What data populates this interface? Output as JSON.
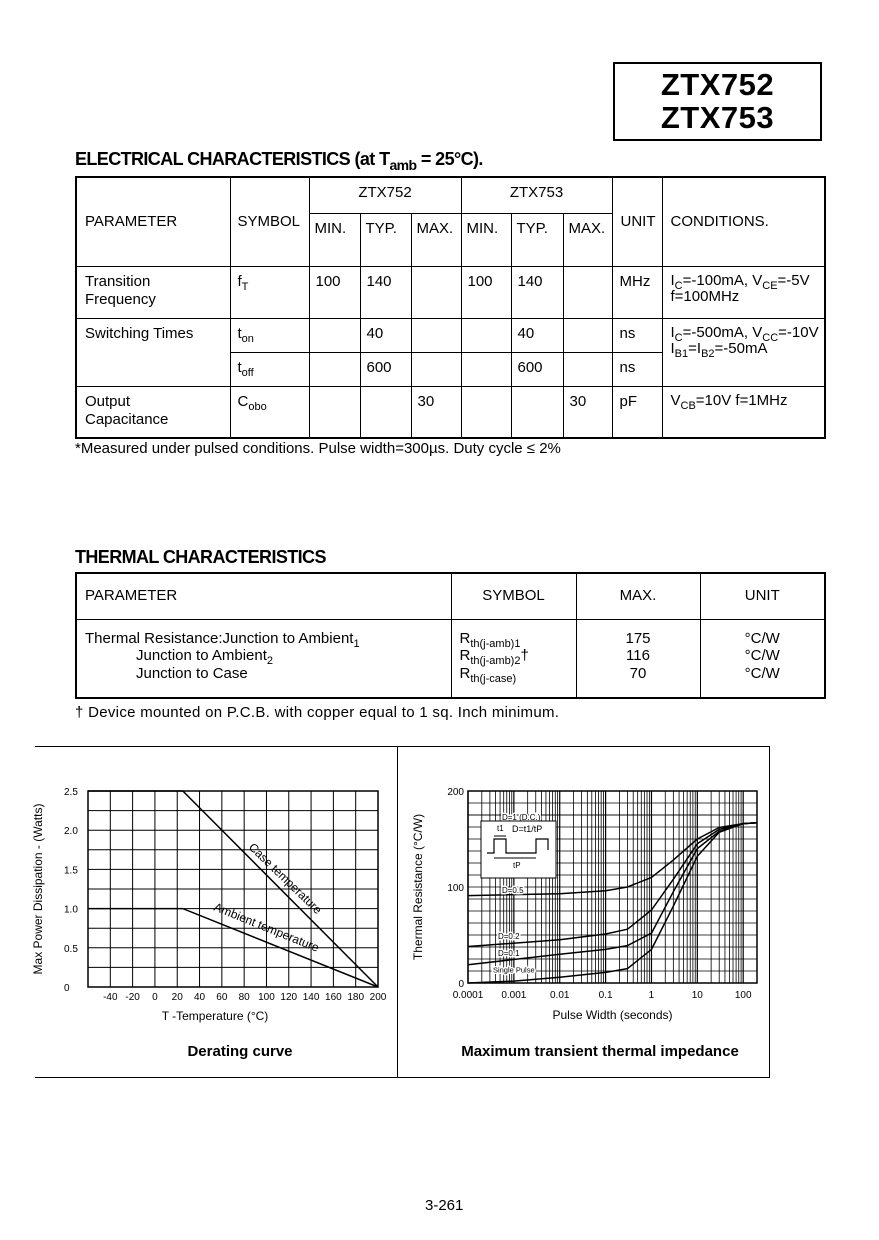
{
  "part_numbers": [
    "ZTX752",
    "ZTX753"
  ],
  "electrical": {
    "heading_main": "ELECTRICAL CHARACTERISTICS (at T",
    "heading_sub": "amb",
    "heading_end": " = 25°C).",
    "headers": {
      "parameter": "PARAMETER",
      "symbol": "SYMBOL",
      "group1": "ZTX752",
      "group2": "ZTX753",
      "min": "MIN.",
      "typ": "TYP.",
      "max": "MAX.",
      "unit": "UNIT",
      "conditions": "CONDITIONS."
    },
    "rows": [
      {
        "parameter": "Transition Frequency",
        "symbol": [
          {
            "t": "f"
          },
          {
            "s": "T"
          }
        ],
        "v752": [
          "100",
          "140",
          ""
        ],
        "v753": [
          "100",
          "140",
          ""
        ],
        "unit": "MHz",
        "conditions": [
          {
            "t": "I"
          },
          {
            "s": "C"
          },
          {
            "t": "=-100mA, V"
          },
          {
            "s": "CE"
          },
          {
            "t": "=-5V"
          },
          {
            "br": true
          },
          {
            "t": "f=100MHz"
          }
        ]
      },
      {
        "parameter": "Switching Times",
        "symbol": [
          {
            "t": "t"
          },
          {
            "s": "on"
          }
        ],
        "v752": [
          "",
          "40",
          ""
        ],
        "v753": [
          "",
          "40",
          ""
        ],
        "unit": "ns",
        "conditions": [
          {
            "t": "I"
          },
          {
            "s": "C"
          },
          {
            "t": "=-500mA, V"
          },
          {
            "s": "CC"
          },
          {
            "t": "=-10V"
          },
          {
            "br": true
          },
          {
            "t": "I"
          },
          {
            "s": "B1"
          },
          {
            "t": "=I"
          },
          {
            "s": "B2"
          },
          {
            "t": "=-50mA"
          }
        ]
      },
      {
        "parameter": "",
        "symbol": [
          {
            "t": "t"
          },
          {
            "s": "off"
          }
        ],
        "v752": [
          "",
          "600",
          ""
        ],
        "v753": [
          "",
          "600",
          ""
        ],
        "unit": "ns",
        "conditions": []
      },
      {
        "parameter": "Output Capacitance",
        "symbol": [
          {
            "t": "C"
          },
          {
            "s": "obo"
          }
        ],
        "v752": [
          "",
          "",
          "30"
        ],
        "v753": [
          "",
          "",
          "30"
        ],
        "unit": "pF",
        "conditions": [
          {
            "t": "V"
          },
          {
            "s": "CB"
          },
          {
            "t": "=10V f=1MHz"
          }
        ]
      }
    ],
    "footnote": "*Measured under pulsed conditions. Pulse width=300µs. Duty cycle ≤ 2%"
  },
  "thermal": {
    "heading": "THERMAL CHARACTERISTICS",
    "headers": {
      "parameter": "PARAMETER",
      "symbol": "SYMBOL",
      "max": "MAX.",
      "unit": "UNIT"
    },
    "rows": [
      {
        "parameter": [
          {
            "t": "Thermal Resistance:Junction to Ambient"
          },
          {
            "s": "1"
          }
        ],
        "symbol": [
          {
            "t": "R"
          },
          {
            "s": "th(j-amb)1"
          }
        ],
        "max": "175",
        "unit": "°C/W"
      },
      {
        "parameter": [
          {
            "t": "Junction to Ambient"
          },
          {
            "s": "2"
          }
        ],
        "symbol": [
          {
            "t": "R"
          },
          {
            "s": "th(j-amb)2"
          },
          {
            "t": "†"
          }
        ],
        "max": "116",
        "unit": "°C/W"
      },
      {
        "parameter": [
          {
            "t": "Junction to Case"
          }
        ],
        "symbol": [
          {
            "t": "R"
          },
          {
            "s": "th(j-case)"
          }
        ],
        "max": "70",
        "unit": "°C/W"
      }
    ],
    "footnote": "† Device mounted on P.C.B. with copper equal to 1 sq. Inch minimum."
  },
  "chart_data": [
    {
      "type": "line",
      "title": "Derating curve",
      "xlabel": "T -Temperature (°C)",
      "ylabel": "Max Power Dissipation - (Watts)",
      "xlim": [
        -60,
        200
      ],
      "ylim": [
        0,
        2.5
      ],
      "xticks": [
        -40,
        -20,
        0,
        20,
        40,
        60,
        80,
        100,
        120,
        140,
        160,
        180,
        200
      ],
      "yticks": [
        "0",
        "0.5",
        "1.0",
        "1.5",
        "2.0",
        "2.5"
      ],
      "grid": true,
      "series": [
        {
          "name": "Case temperature",
          "x": [
            -60,
            25,
            200
          ],
          "y": [
            2.5,
            2.5,
            0
          ]
        },
        {
          "name": "Ambient temperature",
          "x": [
            -60,
            25,
            200
          ],
          "y": [
            1.0,
            1.0,
            0
          ]
        }
      ]
    },
    {
      "type": "line",
      "title": "Maximum transient thermal impedance",
      "xlabel": "Pulse Width (seconds)",
      "ylabel": "Thermal Resistance (°C/W)",
      "xscale": "log",
      "xlim": [
        0.0001,
        200
      ],
      "ylim": [
        0,
        200
      ],
      "xticks": [
        "0.0001",
        "0.001",
        "0.01",
        "0.1",
        "1",
        "10",
        "100"
      ],
      "yticks": [
        "0",
        "100",
        "200"
      ],
      "grid": true,
      "inset": {
        "t1": "t1",
        "tp": "tP",
        "formula": "D=t1/tP"
      },
      "series": [
        {
          "name": "D=1 (D.C.)",
          "x": [],
          "y": []
        },
        {
          "name": "D=0.5",
          "x": [
            0.0001,
            0.01,
            0.1,
            0.3,
            1,
            3,
            10,
            30,
            100,
            200
          ],
          "y": [
            91,
            93,
            96,
            100,
            110,
            128,
            150,
            162,
            166,
            167
          ]
        },
        {
          "name": "D=0.2",
          "x": [
            0.0001,
            0.01,
            0.1,
            0.3,
            1,
            3,
            10,
            30,
            100,
            200
          ],
          "y": [
            38,
            45,
            51,
            56,
            76,
            108,
            145,
            160,
            166,
            167
          ]
        },
        {
          "name": "D=0.1",
          "x": [
            0.0001,
            0.01,
            0.1,
            0.3,
            1,
            3,
            10,
            30,
            100,
            200
          ],
          "y": [
            19,
            30,
            35,
            39,
            52,
            95,
            140,
            158,
            166,
            167
          ]
        },
        {
          "name": "Single Pulse",
          "x": [
            0.0001,
            0.001,
            0.01,
            0.1,
            0.3,
            1,
            3,
            10,
            30,
            100,
            200
          ],
          "y": [
            0,
            2,
            6,
            11,
            15,
            35,
            80,
            132,
            157,
            166,
            167
          ]
        }
      ]
    }
  ],
  "page_number": "3-261"
}
